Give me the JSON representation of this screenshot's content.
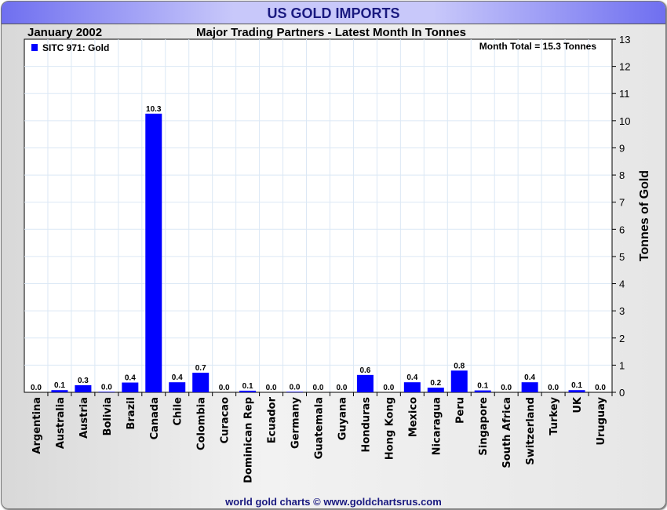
{
  "chart_data": {
    "type": "bar",
    "title": "US GOLD IMPORTS",
    "period": "January 2002",
    "subtitle": "Major Trading Partners - Latest Month In Tonnes",
    "legend": "SITC 971: Gold",
    "legend_placement": "top-left",
    "annotation": "Month Total = 15.3 Tonnes",
    "ylabel": "Tonnes of Gold",
    "ylim": [
      0,
      13
    ],
    "yticks": [
      0,
      1,
      2,
      3,
      4,
      5,
      6,
      7,
      8,
      9,
      10,
      11,
      12,
      13
    ],
    "grid": true,
    "bar_color": "#0000ff",
    "categories": [
      "Argentina",
      "Australia",
      "Austria",
      "Bolivia",
      "Brazil",
      "Canada",
      "Chile",
      "Colombia",
      "Curacao",
      "Dominican Rep",
      "Ecuador",
      "Germany",
      "Guatemala",
      "Guyana",
      "Honduras",
      "Hong Kong",
      "Mexico",
      "Nicaragua",
      "Peru",
      "Singapore",
      "South Africa",
      "Switzerland",
      "Turkey",
      "UK",
      "Uruguay"
    ],
    "values": [
      0.0,
      0.08,
      0.26,
      0.02,
      0.36,
      10.26,
      0.37,
      0.72,
      0.0,
      0.06,
      0.0,
      0.02,
      0.0,
      0.0,
      0.64,
      0.0,
      0.37,
      0.17,
      0.8,
      0.07,
      0.0,
      0.37,
      0.0,
      0.08,
      0.0
    ],
    "labels": [
      "0.0",
      "0.1",
      "0.3",
      "0.0",
      "0.4",
      "10.3",
      "0.4",
      "0.7",
      "0.0",
      "0.1",
      "0.0",
      "0.0",
      "0.0",
      "0.0",
      "0.6",
      "0.0",
      "0.4",
      "0.2",
      "0.8",
      "0.1",
      "0.0",
      "0.4",
      "0.0",
      "0.1",
      "0.0"
    ]
  },
  "footer": "world gold charts © www.goldchartsrus.com"
}
